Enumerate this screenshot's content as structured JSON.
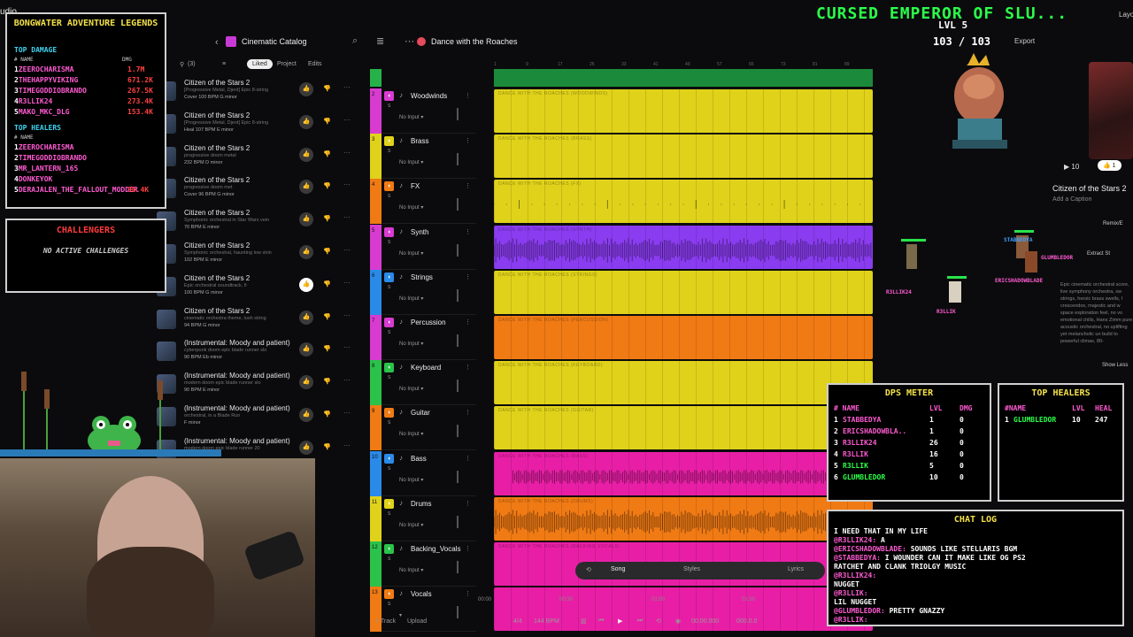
{
  "app": {
    "corner_label": "udio"
  },
  "topbar": {
    "back": "‹",
    "catalog_title": "Cinematic Catalog",
    "search_icon": "⌕",
    "menu_icon": "≣",
    "more_icon": "⋯",
    "song_title": "Dance with the Roaches"
  },
  "filters": {
    "count": "(3)",
    "liked": "Liked",
    "project": "Project",
    "edits": "Edits"
  },
  "library": [
    {
      "title": "Citizen of the Stars 2",
      "desc": "[Progressive Metal, Djent] Epic 8-string",
      "meta": "Cover  100 BPM  G minor"
    },
    {
      "title": "Citizen of the Stars 2",
      "desc": "[Progressive Metal, Djent] Epic 8-string",
      "meta": "Heal  107 BPM  E minor"
    },
    {
      "title": "Citizen of the Stars 2",
      "desc": "progressive doom metal",
      "meta": "232 BPM  D minor"
    },
    {
      "title": "Citizen of the Stars 2",
      "desc": "progressive doom met",
      "meta": "Cover  96 BPM  G minor"
    },
    {
      "title": "Citizen of the Stars 2",
      "desc": "Symphonic orchestral in Star Wars vein",
      "meta": "70 BPM  E minor"
    },
    {
      "title": "Citizen of the Stars 2",
      "desc": "Symphonic orchestral, haunting low strin",
      "meta": "102 BPM  E minor"
    },
    {
      "title": "Citizen of the Stars 2",
      "desc": "Epic orchestral soundtrack, fi",
      "meta": "100 BPM  G minor"
    },
    {
      "title": "Citizen of the Stars 2",
      "desc": "cinematic orchestra theme, lush string",
      "meta": "94 BPM  G minor"
    },
    {
      "title": "(Instrumental: Moody and patient)",
      "desc": "cyberpunk doom epic blade runner slo",
      "meta": "90 BPM  Eb minor"
    },
    {
      "title": "(Instrumental: Moody and patient)",
      "desc": "modern doom epic blade runner slo",
      "meta": "90 BPM  E minor"
    },
    {
      "title": "(Instrumental: Moody and patient)",
      "desc": "orchestral, in a Blade Run",
      "meta": "F minor"
    },
    {
      "title": "(Instrumental: Moody and patient)",
      "desc": "modern doom epic blade runner 20",
      "meta": ""
    }
  ],
  "tracks": [
    {
      "num": "2",
      "name": "Woodwinds",
      "input": "No Input",
      "color": "#e0d21a",
      "strip": "#d83bd0",
      "label": "Dance with the Roaches (Woodwinds)",
      "wave": "none"
    },
    {
      "num": "3",
      "name": "Brass",
      "input": "No Input",
      "color": "#e0d21a",
      "strip": "#e0d21a",
      "label": "Dance with the Roaches (Brass)",
      "wave": "none"
    },
    {
      "num": "4",
      "name": "FX",
      "input": "No Input",
      "color": "#e0d21a",
      "strip": "#f07a14",
      "label": "Dance with the Roaches (FX)",
      "wave": "sparse"
    },
    {
      "num": "5",
      "name": "Synth",
      "input": "No Input",
      "color": "#8a3cf0",
      "strip": "#d83bd0",
      "label": "Dance with the Roaches (Synth)",
      "wave": "dense"
    },
    {
      "num": "6",
      "name": "Strings",
      "input": "No Input",
      "color": "#e0d21a",
      "strip": "#2a8ae8",
      "label": "Dance with the Roaches (Strings)",
      "wave": "none"
    },
    {
      "num": "7",
      "name": "Percussion",
      "input": "No Input",
      "color": "#f07a14",
      "strip": "#d83bd0",
      "label": "Dance with the Roaches (Percussion)",
      "wave": "none"
    },
    {
      "num": "8",
      "name": "Keyboard",
      "input": "No Input",
      "color": "#e0d21a",
      "strip": "#2ac24a",
      "label": "Dance with the Roaches (Keyboard)",
      "wave": "none"
    },
    {
      "num": "9",
      "name": "Guitar",
      "input": "No Input",
      "color": "#e0d21a",
      "strip": "#f07a14",
      "label": "Dance with the Roaches (Guitar)",
      "wave": "none"
    },
    {
      "num": "10",
      "name": "Bass",
      "input": "No Input",
      "color": "#e81fa6",
      "strip": "#2a8ae8",
      "label": "Dance with the Roaches (Bass)",
      "wave": "medium"
    },
    {
      "num": "11",
      "name": "Drums",
      "input": "No Input",
      "color": "#f07a14",
      "strip": "#e0d21a",
      "label": "Dance with the Roaches (Drums)",
      "wave": "dense"
    },
    {
      "num": "12",
      "name": "Backing_Vocals",
      "input": "No Input",
      "color": "#e81fa6",
      "strip": "#2ac24a",
      "label": "Dance with the Roaches (Backing Vocals)",
      "wave": "none"
    },
    {
      "num": "13",
      "name": "Vocals",
      "input": "",
      "color": "#e81fa6",
      "strip": "#f07a14",
      "label": "",
      "wave": "none"
    }
  ],
  "ruler": {
    "marks": [
      "1",
      "9",
      "17",
      "25",
      "33",
      "41",
      "49",
      "57",
      "65",
      "73",
      "81",
      "89"
    ]
  },
  "songbar": {
    "song": "Song",
    "styles": "Styles",
    "lyrics": "Lyrics"
  },
  "timeline": {
    "t0": "00:00",
    "t1": "00:30",
    "t2": "01:00",
    "t3": "01:30"
  },
  "bottombar": {
    "track": "+ Track",
    "upload": "Upload",
    "sig": "4/4",
    "bpm": "144 BPM",
    "time": "00:00.000",
    "beat": "000.0.0"
  },
  "rightpane": {
    "play_count": "10",
    "likes": "1",
    "song_title": "Citizen of the Stars 2",
    "caption": "Add a Caption",
    "remix": "Remix/E",
    "extract": "Extract St",
    "desc": "Epic cinematic orchestral score, live symphony orchestra, sw strings, heroic brass swells, l crescendos, majestic and w space exploration feel, no vo emotional chills, Hans Zimm pure acoustic orchestral, no uplifting yet melancholic un build to powerful climax, 80-",
    "show_less": "Show Less",
    "export": "Export",
    "layout": "Layo"
  },
  "overlay": {
    "title": "BONGWATER ADVENTURE LEGENDS",
    "top_damage": "TOP DAMAGE",
    "col_name": "# NAME",
    "col_dmg": "DMG",
    "damage": [
      {
        "rank": "1",
        "name": "ZEEROCHARISMA",
        "val": "1.7M"
      },
      {
        "rank": "2",
        "name": "THEHAPPYVIKING",
        "val": "671.2K"
      },
      {
        "rank": "3",
        "name": "TIMEGODDIOBRANDO",
        "val": "267.5K"
      },
      {
        "rank": "4",
        "name": "R3LLIK24",
        "val": "273.4K"
      },
      {
        "rank": "5",
        "name": "MAKO_MKC_DLG",
        "val": "153.4K"
      }
    ],
    "top_healers": "TOP HEALERS",
    "heal_col_name": "# NAME",
    "healers": [
      {
        "rank": "1",
        "name": "ZEEROCHARISMA",
        "val": ""
      },
      {
        "rank": "2",
        "name": "TIMEGODDIOBRANDO",
        "val": ""
      },
      {
        "rank": "3",
        "name": "MR_LANTERN_165",
        "val": ""
      },
      {
        "rank": "4",
        "name": "DONKEYOK",
        "val": ""
      },
      {
        "rank": "5",
        "name": "DERAJALEN_THE_FALLOUT_MODDER",
        "val": "90.4K"
      }
    ],
    "challengers": "CHALLENGERS",
    "no_challenges": "NO ACTIVE CHALLENGES",
    "boss_title": "CURSED EMPEROR OF SLU...",
    "boss_lvl": "LVL 5",
    "boss_hp": "103 / 103",
    "dps_title": "DPS METER",
    "dps_cols": {
      "name": "# NAME",
      "lvl": "LVL",
      "dmg": "DMG"
    },
    "dps": [
      {
        "rank": "1",
        "name": "STABBEDYA",
        "lvl": "1",
        "dmg": "0",
        "color": "#ff5ad1"
      },
      {
        "rank": "2",
        "name": "ERICSHADOWBLA..",
        "lvl": "1",
        "dmg": "0",
        "color": "#ff5ad1"
      },
      {
        "rank": "3",
        "name": "R3LLIK24",
        "lvl": "26",
        "dmg": "0",
        "color": "#ff5ad1"
      },
      {
        "rank": "4",
        "name": "R3LLIK",
        "lvl": "16",
        "dmg": "0",
        "color": "#ff5ad1"
      },
      {
        "rank": "5",
        "name": "R3LLIK",
        "lvl": "5",
        "dmg": "0",
        "color": "#2bff4a"
      },
      {
        "rank": "6",
        "name": "GLUMBLEDOR",
        "lvl": "10",
        "dmg": "0",
        "color": "#2bff4a"
      }
    ],
    "heal_title": "TOP HEALERS",
    "heal_cols": {
      "name": "#NAME",
      "lvl": "LVL",
      "heal": "HEAL"
    },
    "heal_rows": [
      {
        "rank": "1",
        "name": "GLUMBLEDOR",
        "lvl": "10",
        "heal": "247"
      }
    ],
    "chat_title": "CHAT LOG",
    "chat": [
      {
        "user": "",
        "text": "I NEED THAT IN MY LIFE"
      },
      {
        "user": "@R3LLIK24:",
        "text": " A"
      },
      {
        "user": "@ERICSHADOWBLADE:",
        "text": " SOUNDS LIKE STELLARIS BGM"
      },
      {
        "user": "@STABBEDYA:",
        "text": " I WOUNDER CAN IT MAKE LIKE OG PS2"
      },
      {
        "user": "",
        "text": "RATCHET AND CLANK TRIOLGY MUSIC"
      },
      {
        "user": "@R3LLIK24:",
        "text": ""
      },
      {
        "user": "",
        "text": "  NUGGET"
      },
      {
        "user": "@R3LLIK:",
        "text": ""
      },
      {
        "user": "",
        "text": "  LIL NUGGET"
      },
      {
        "user": "@GLUMBLEDOR:",
        "text": " PRETTY GNAZZY"
      },
      {
        "user": "@R3LLIK:",
        "text": ""
      }
    ],
    "chars": [
      {
        "name": "R3LLIK24",
        "color": "#ff5ad1"
      },
      {
        "name": "R3LLIK",
        "color": "#ff5ad1"
      },
      {
        "name": "STABBEDYA",
        "color": "#3fa2ff"
      },
      {
        "name": "GLUMBLEDOR",
        "color": "#ff5ad1"
      },
      {
        "name": "ERICSHADOWBLADE",
        "color": "#ff5ad1"
      }
    ]
  }
}
